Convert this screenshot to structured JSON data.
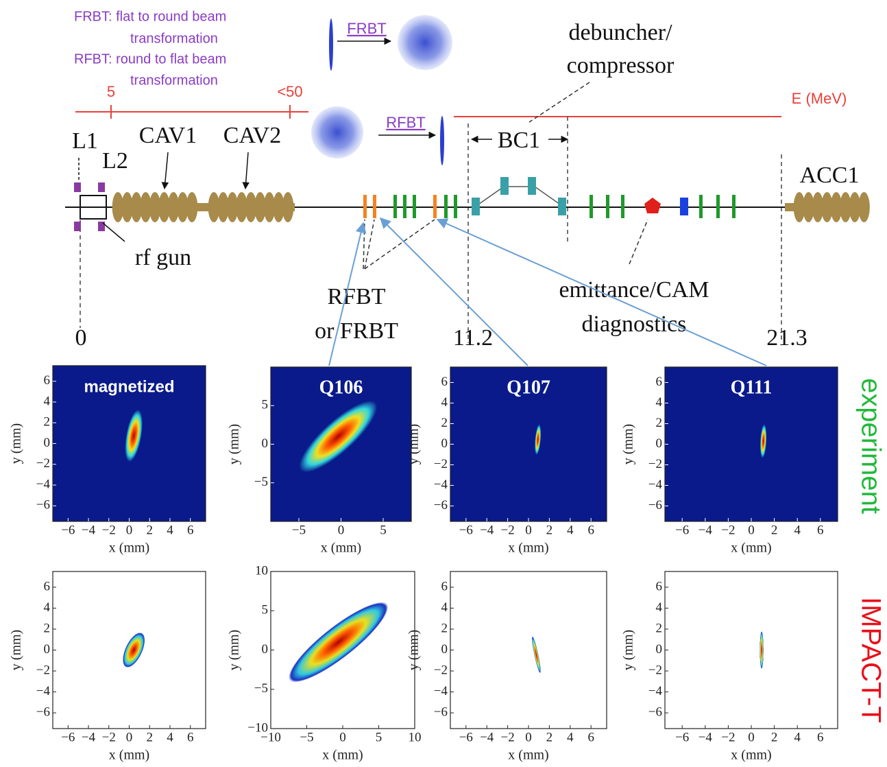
{
  "notes": [
    "FRBT: flat to round beam",
    "transformation",
    "RFBT: round to flat beam",
    "transformation"
  ],
  "insets": [
    "FRBT",
    "RFBT"
  ],
  "energy": {
    "label": "E (MeV)",
    "marks": [
      "5",
      "<50"
    ]
  },
  "labels": {
    "debuncher": "debuncher/",
    "compressor": "compressor",
    "l1": "L1",
    "l2": "L2",
    "cav1": "CAV1",
    "cav2": "CAV2",
    "bc1": "BC1",
    "acc1": "ACC1",
    "gun": "rf gun",
    "rfbt1": "RFBT",
    "rfbt2": "or FRBT",
    "emit1": "emittance/CAM",
    "emit2": "diagnostics"
  },
  "positions": [
    "0",
    "11.2",
    "21.3"
  ],
  "row_labels": [
    "experiment",
    "IMPACT-T"
  ],
  "panels": [
    {
      "title": "magnetized",
      "xlabel": "x (mm)",
      "ylabel": "y (mm)",
      "xticks": [
        "−6",
        "−4",
        "−2",
        "0",
        "2",
        "4",
        "6"
      ],
      "yticks": [
        "6",
        "4",
        "2",
        "0",
        "−2",
        "−4",
        "−6"
      ]
    },
    {
      "title": "Q106",
      "xlabel": "x (mm)",
      "ylabel": "y (mm)",
      "xticks": [
        "−5",
        "0",
        "5"
      ],
      "yticks": [
        "5",
        "0",
        "−5"
      ]
    },
    {
      "title": "Q107",
      "xlabel": "x (mm)",
      "ylabel": "y (mm)",
      "xticks": [
        "−6",
        "−4",
        "−2",
        "0",
        "2",
        "4",
        "6"
      ],
      "yticks": [
        "6",
        "4",
        "2",
        "0",
        "−2",
        "−4",
        "−6"
      ]
    },
    {
      "title": "Q111",
      "xlabel": "x (mm)",
      "ylabel": "y (mm)",
      "xticks": [
        "−6",
        "−4",
        "−2",
        "0",
        "2",
        "4",
        "6"
      ],
      "yticks": [
        "6",
        "4",
        "2",
        "0",
        "−2",
        "−4",
        "−6"
      ]
    },
    {
      "xlabel": "x (mm)",
      "ylabel": "y (mm)",
      "xticks": [
        "−6",
        "−4",
        "−2",
        "0",
        "2",
        "4",
        "6"
      ],
      "yticks": [
        "6",
        "4",
        "2",
        "0",
        "−2",
        "−4",
        "−6"
      ]
    },
    {
      "xlabel": "x (mm)",
      "ylabel": "y (mm)",
      "xticks": [
        "−10",
        "−5",
        "0",
        "5",
        "10"
      ],
      "yticks": [
        "10",
        "5",
        "0",
        "−5",
        "−10"
      ]
    },
    {
      "xlabel": "x (mm)",
      "ylabel": "y (mm)",
      "xticks": [
        "−6",
        "−4",
        "−2",
        "0",
        "2",
        "4",
        "6"
      ],
      "yticks": [
        "6",
        "4",
        "2",
        "0",
        "−2",
        "−4",
        "−6"
      ]
    },
    {
      "xlabel": "x (mm)",
      "ylabel": "y (mm)",
      "xticks": [
        "−6",
        "−4",
        "−2",
        "0",
        "2",
        "4",
        "6"
      ],
      "yticks": [
        "6",
        "4",
        "2",
        "0",
        "−2",
        "−4",
        "−6"
      ]
    }
  ]
}
